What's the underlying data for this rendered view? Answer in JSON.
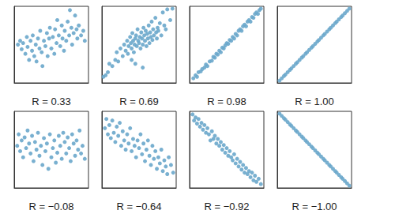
{
  "chart_data": [
    {
      "type": "scatter",
      "xlabel": "R = 0.33",
      "color": "#6aa7cb",
      "marker": "circle",
      "grid": false,
      "tick_labels": false,
      "xlim": [
        0,
        100
      ],
      "ylim": [
        0,
        100
      ],
      "x": [
        5,
        8,
        10,
        12,
        15,
        17,
        18,
        20,
        22,
        24,
        25,
        27,
        29,
        30,
        32,
        34,
        35,
        37,
        38,
        40,
        42,
        44,
        45,
        47,
        48,
        50,
        52,
        54,
        55,
        57,
        58,
        60,
        62,
        64,
        65,
        67,
        68,
        70,
        72,
        74,
        75,
        77,
        78,
        80,
        82,
        84,
        85,
        87,
        90,
        93,
        95
      ],
      "values": [
        50,
        55,
        44,
        52,
        38,
        60,
        47,
        30,
        55,
        42,
        62,
        35,
        50,
        28,
        58,
        45,
        68,
        40,
        22,
        55,
        48,
        65,
        35,
        58,
        72,
        45,
        60,
        38,
        70,
        52,
        82,
        62,
        48,
        75,
        58,
        42,
        68,
        55,
        80,
        62,
        95,
        72,
        50,
        65,
        88,
        70,
        58,
        75,
        62,
        68,
        55
      ]
    },
    {
      "type": "scatter",
      "xlabel": "R = 0.69",
      "color": "#6aa7cb",
      "marker": "circle",
      "grid": false,
      "tick_labels": false,
      "xlim": [
        0,
        100
      ],
      "ylim": [
        0,
        100
      ],
      "x": [
        2,
        5,
        8,
        10,
        14,
        18,
        20,
        22,
        25,
        28,
        30,
        32,
        34,
        35,
        36,
        38,
        39,
        40,
        41,
        42,
        43,
        44,
        45,
        46,
        47,
        48,
        49,
        50,
        51,
        52,
        53,
        54,
        55,
        56,
        57,
        58,
        59,
        60,
        61,
        62,
        63,
        64,
        65,
        66,
        67,
        68,
        69,
        70,
        72,
        73,
        74,
        75,
        76,
        78,
        80,
        82,
        84,
        86,
        88,
        92,
        95,
        45,
        55,
        40
      ],
      "values": [
        8,
        10,
        14,
        25,
        22,
        30,
        40,
        28,
        45,
        35,
        50,
        42,
        55,
        38,
        48,
        60,
        52,
        45,
        65,
        55,
        40,
        50,
        58,
        62,
        48,
        70,
        55,
        52,
        60,
        45,
        66,
        58,
        50,
        72,
        62,
        55,
        68,
        48,
        64,
        58,
        75,
        52,
        66,
        60,
        80,
        56,
        70,
        62,
        85,
        66,
        58,
        72,
        68,
        78,
        62,
        92,
        75,
        70,
        96,
        82,
        97,
        25,
        20,
        30
      ]
    },
    {
      "type": "scatter",
      "xlabel": "R = 0.98",
      "color": "#6aa7cb",
      "marker": "circle",
      "grid": false,
      "tick_labels": false,
      "xlim": [
        0,
        100
      ],
      "ylim": [
        0,
        100
      ],
      "x": [
        5,
        8,
        10,
        12,
        15,
        17,
        20,
        22,
        24,
        27,
        30,
        32,
        34,
        36,
        38,
        40,
        42,
        44,
        46,
        48,
        50,
        52,
        54,
        56,
        58,
        60,
        62,
        64,
        66,
        68,
        70,
        72,
        74,
        76,
        78,
        80,
        82,
        84,
        86,
        88,
        90,
        92,
        94,
        96
      ],
      "values": [
        6,
        10,
        8,
        14,
        15,
        18,
        20,
        24,
        22,
        28,
        29,
        34,
        33,
        38,
        37,
        42,
        40,
        46,
        45,
        49,
        52,
        51,
        56,
        55,
        60,
        58,
        64,
        62,
        68,
        70,
        68,
        74,
        76,
        74,
        80,
        82,
        80,
        86,
        85,
        90,
        92,
        90,
        95,
        97
      ]
    },
    {
      "type": "scatter",
      "xlabel": "R = 1.00",
      "color": "#6aa7cb",
      "marker": "circle",
      "grid": false,
      "tick_labels": false,
      "xlim": [
        0,
        100
      ],
      "ylim": [
        0,
        100
      ],
      "x": [
        3,
        6,
        9,
        11,
        14,
        17,
        19,
        22,
        25,
        27,
        30,
        33,
        35,
        38,
        40,
        43,
        46,
        48,
        51,
        54,
        56,
        59,
        62,
        64,
        67,
        70,
        72,
        75,
        78,
        80,
        83,
        86,
        88,
        91,
        94,
        97
      ],
      "values": [
        3,
        6,
        9,
        11,
        14,
        17,
        19,
        22,
        25,
        27,
        30,
        33,
        35,
        38,
        40,
        43,
        46,
        48,
        51,
        54,
        56,
        59,
        62,
        64,
        67,
        70,
        72,
        75,
        78,
        80,
        83,
        86,
        88,
        91,
        94,
        97
      ]
    },
    {
      "type": "scatter",
      "xlabel": "R = −0.08",
      "color": "#6aa7cb",
      "marker": "circle",
      "grid": false,
      "tick_labels": false,
      "xlim": [
        0,
        100
      ],
      "ylim": [
        0,
        100
      ],
      "x": [
        4,
        6,
        8,
        10,
        12,
        14,
        16,
        18,
        20,
        22,
        24,
        26,
        28,
        30,
        32,
        34,
        36,
        38,
        40,
        42,
        44,
        46,
        48,
        50,
        52,
        54,
        56,
        58,
        60,
        62,
        64,
        66,
        68,
        70,
        72,
        74,
        76,
        78,
        80,
        82,
        84,
        86,
        88,
        90,
        92,
        95
      ],
      "values": [
        55,
        70,
        48,
        62,
        40,
        66,
        52,
        75,
        58,
        45,
        68,
        35,
        60,
        50,
        72,
        42,
        55,
        30,
        65,
        48,
        58,
        25,
        70,
        40,
        52,
        62,
        33,
        46,
        68,
        55,
        38,
        72,
        60,
        45,
        66,
        52,
        35,
        70,
        58,
        42,
        62,
        50,
        75,
        45,
        55,
        38
      ]
    },
    {
      "type": "scatter",
      "xlabel": "R = −0.64",
      "color": "#6aa7cb",
      "marker": "circle",
      "grid": false,
      "tick_labels": false,
      "xlim": [
        0,
        100
      ],
      "ylim": [
        0,
        100
      ],
      "x": [
        4,
        6,
        8,
        10,
        12,
        14,
        16,
        18,
        20,
        22,
        24,
        26,
        28,
        30,
        32,
        34,
        36,
        38,
        40,
        42,
        44,
        46,
        48,
        50,
        52,
        54,
        56,
        58,
        60,
        62,
        64,
        66,
        68,
        70,
        72,
        74,
        76,
        78,
        80,
        82,
        84,
        86,
        88,
        90,
        93,
        96
      ],
      "values": [
        78,
        90,
        70,
        82,
        65,
        88,
        72,
        60,
        80,
        68,
        85,
        55,
        74,
        62,
        50,
        70,
        58,
        78,
        48,
        64,
        55,
        40,
        62,
        52,
        70,
        44,
        58,
        35,
        50,
        62,
        42,
        30,
        55,
        38,
        48,
        25,
        40,
        32,
        50,
        22,
        36,
        28,
        18,
        40,
        30,
        20
      ]
    },
    {
      "type": "scatter",
      "xlabel": "R = −0.92",
      "color": "#6aa7cb",
      "marker": "circle",
      "grid": false,
      "tick_labels": false,
      "xlim": [
        0,
        100
      ],
      "ylim": [
        0,
        100
      ],
      "x": [
        4,
        6,
        8,
        10,
        12,
        14,
        16,
        18,
        20,
        22,
        24,
        26,
        28,
        30,
        32,
        34,
        36,
        38,
        40,
        42,
        44,
        46,
        48,
        50,
        52,
        54,
        56,
        58,
        60,
        62,
        64,
        66,
        68,
        70,
        72,
        74,
        76,
        78,
        80,
        82,
        84,
        86,
        88,
        90,
        93,
        96
      ],
      "values": [
        96,
        88,
        92,
        84,
        90,
        80,
        85,
        76,
        82,
        72,
        78,
        70,
        62,
        74,
        64,
        68,
        58,
        64,
        55,
        60,
        50,
        56,
        46,
        52,
        42,
        48,
        40,
        36,
        44,
        32,
        38,
        28,
        34,
        24,
        30,
        20,
        26,
        18,
        22,
        14,
        20,
        10,
        16,
        8,
        12,
        5
      ]
    },
    {
      "type": "scatter",
      "xlabel": "R = −1.00",
      "color": "#6aa7cb",
      "marker": "circle",
      "grid": false,
      "tick_labels": false,
      "xlim": [
        0,
        100
      ],
      "ylim": [
        0,
        100
      ],
      "x": [
        3,
        6,
        9,
        11,
        14,
        17,
        19,
        22,
        25,
        27,
        30,
        33,
        35,
        38,
        40,
        43,
        46,
        48,
        51,
        54,
        56,
        59,
        62,
        64,
        67,
        70,
        72,
        75,
        78,
        80,
        83,
        86,
        88,
        91,
        94,
        97
      ],
      "values": [
        97,
        94,
        91,
        89,
        86,
        83,
        81,
        78,
        75,
        73,
        70,
        67,
        65,
        62,
        60,
        57,
        54,
        52,
        49,
        46,
        44,
        41,
        38,
        36,
        33,
        30,
        28,
        25,
        22,
        20,
        17,
        14,
        12,
        9,
        6,
        3
      ]
    }
  ]
}
